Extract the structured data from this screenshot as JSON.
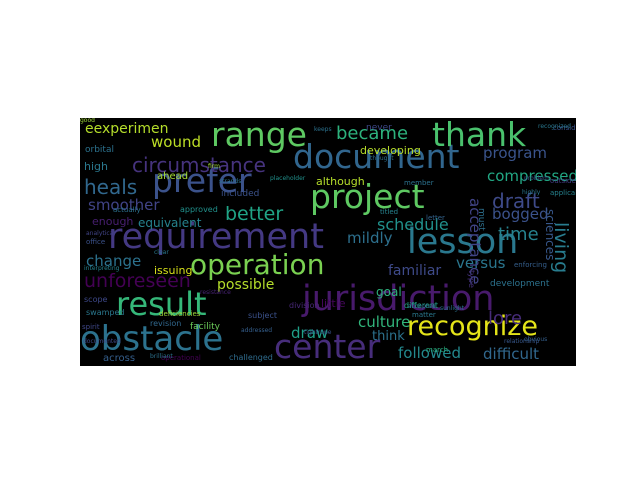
{
  "words": [
    {
      "t": "requirement",
      "c": "#443983"
    },
    {
      "t": "jurisdiction",
      "c": "#481a6c"
    },
    {
      "t": "obstacle",
      "c": "#2c728e"
    },
    {
      "t": "document",
      "c": "#31668e"
    },
    {
      "t": "prefer",
      "c": "#3b528b"
    },
    {
      "t": "project",
      "c": "#5ec962"
    },
    {
      "t": "operation",
      "c": "#7ad151"
    },
    {
      "t": "result",
      "c": "#35b779"
    },
    {
      "t": "recognize",
      "c": "#e4e419"
    },
    {
      "t": "thank",
      "c": "#4ac16d"
    },
    {
      "t": "range",
      "c": "#5ec962"
    },
    {
      "t": "lesson",
      "c": "#2a788e"
    },
    {
      "t": "center",
      "c": "#472d7b"
    },
    {
      "t": "unforeseen",
      "c": "#440154"
    },
    {
      "t": "circumstance",
      "c": "#46337e"
    },
    {
      "t": "draft",
      "c": "#3e4a89"
    },
    {
      "t": "heals",
      "c": "#31688e"
    },
    {
      "t": "better",
      "c": "#20a486"
    },
    {
      "t": "time",
      "c": "#26828e"
    },
    {
      "t": "schedule",
      "c": "#21918c"
    },
    {
      "t": "wound",
      "c": "#bddf26"
    },
    {
      "t": "became",
      "c": "#2db27d"
    },
    {
      "t": "eexperimen",
      "c": "#b5de2b"
    },
    {
      "t": "program",
      "c": "#3a548c"
    },
    {
      "t": "compressed",
      "c": "#22a884"
    },
    {
      "t": "smoother",
      "c": "#414487"
    },
    {
      "t": "change",
      "c": "#2c728e"
    },
    {
      "t": "versus",
      "c": "#2a768e"
    },
    {
      "t": "familiar",
      "c": "#3e4a89"
    },
    {
      "t": "culture",
      "c": "#31b57b"
    },
    {
      "t": "draw",
      "c": "#1fa088"
    },
    {
      "t": "followed",
      "c": "#23898e"
    },
    {
      "t": "difficult",
      "c": "#31688e"
    },
    {
      "t": "mildly",
      "c": "#2d708e"
    },
    {
      "t": "acceptance",
      "c": "#414487"
    },
    {
      "t": "living",
      "c": "#287c8e"
    },
    {
      "t": "possible",
      "c": "#b5de2b"
    },
    {
      "t": "lore",
      "c": "#472c7a"
    },
    {
      "t": "bogged",
      "c": "#3b528b"
    },
    {
      "t": "issuing",
      "c": "#d8e219"
    },
    {
      "t": "enough",
      "c": "#481f70"
    },
    {
      "t": "equivalent",
      "c": "#26828e"
    },
    {
      "t": "although",
      "c": "#b5de2b"
    },
    {
      "t": "little",
      "c": "#46085c"
    },
    {
      "t": "think",
      "c": "#2c728e"
    },
    {
      "t": "division",
      "c": "#482878"
    },
    {
      "t": "high",
      "c": "#2a788e"
    },
    {
      "t": "ahead",
      "c": "#a5db36"
    },
    {
      "t": "orbital",
      "c": "#2c728e"
    },
    {
      "t": "never",
      "c": "#3e4989"
    },
    {
      "t": "developing",
      "c": "#b8de29"
    },
    {
      "t": "included",
      "c": "#3b528b"
    },
    {
      "t": "goal",
      "c": "#2db27d"
    },
    {
      "t": "development",
      "c": "#2c728e"
    },
    {
      "t": "sciences",
      "c": "#38588c"
    },
    {
      "t": "must",
      "c": "#2d708e"
    },
    {
      "t": "across",
      "c": "#355f8d"
    },
    {
      "t": "challenged",
      "c": "#2f6c8e"
    },
    {
      "t": "operational",
      "c": "#440154"
    },
    {
      "t": "revision",
      "c": "#31688e"
    },
    {
      "t": "facility",
      "c": "#6ccd5a"
    },
    {
      "t": "subject",
      "c": "#3b528b"
    },
    {
      "t": "scope",
      "c": "#3e4989"
    },
    {
      "t": "swamped",
      "c": "#2a788e"
    },
    {
      "t": "deficiencies",
      "c": "#9fda3a"
    },
    {
      "t": "approved",
      "c": "#21918c"
    },
    {
      "t": "office",
      "c": "#3b528b"
    },
    {
      "t": "actually",
      "c": "#2c728e"
    },
    {
      "t": "titled",
      "c": "#26828e"
    },
    {
      "t": "different",
      "c": "#20a386"
    },
    {
      "t": "letter",
      "c": "#33638d"
    },
    {
      "t": "march",
      "c": "#29af7f"
    },
    {
      "t": "matter",
      "c": "#2a788e"
    },
    {
      "t": "member",
      "c": "#2c728e"
    },
    {
      "t": "outside",
      "c": "#433e85"
    },
    {
      "t": "applicable",
      "c": "#26828e"
    },
    {
      "t": "considerable",
      "c": "#3b528b"
    },
    {
      "t": "type",
      "c": "#46327e"
    },
    {
      "t": "spirit",
      "c": "#3f4788"
    },
    {
      "t": "enforcing",
      "c": "#355f8d"
    },
    {
      "t": "keeps",
      "c": "#2c728e"
    },
    {
      "t": "firm",
      "c": "#a2da37"
    },
    {
      "t": "clear",
      "c": "#2a788e"
    },
    {
      "t": "addressed",
      "c": "#355f8d"
    },
    {
      "t": "relationship",
      "c": "#38588c"
    },
    {
      "t": "documented",
      "c": "#3e4989"
    },
    {
      "t": "tightrope",
      "c": "#39558c"
    },
    {
      "t": "resistance",
      "c": "#482475"
    },
    {
      "t": "thought",
      "c": "#2e6e8e"
    },
    {
      "t": "sunlight",
      "c": "#2c728e"
    },
    {
      "t": "accepted",
      "c": "#31688e"
    },
    {
      "t": "recognized",
      "c": "#2a788e"
    },
    {
      "t": "interpreting",
      "c": "#26828e"
    },
    {
      "t": "analytical",
      "c": "#414487"
    },
    {
      "t": "strands",
      "c": "#2c728e"
    },
    {
      "t": "placeholder",
      "c": "#21918c"
    },
    {
      "t": "problem",
      "c": "#3b528b"
    },
    {
      "t": "highly",
      "c": "#2a788e"
    },
    {
      "t": "obvious",
      "c": "#355f8d"
    },
    {
      "t": "brilliant",
      "c": "#2c728e"
    },
    {
      "t": "good",
      "c": "#a0da39"
    }
  ]
}
